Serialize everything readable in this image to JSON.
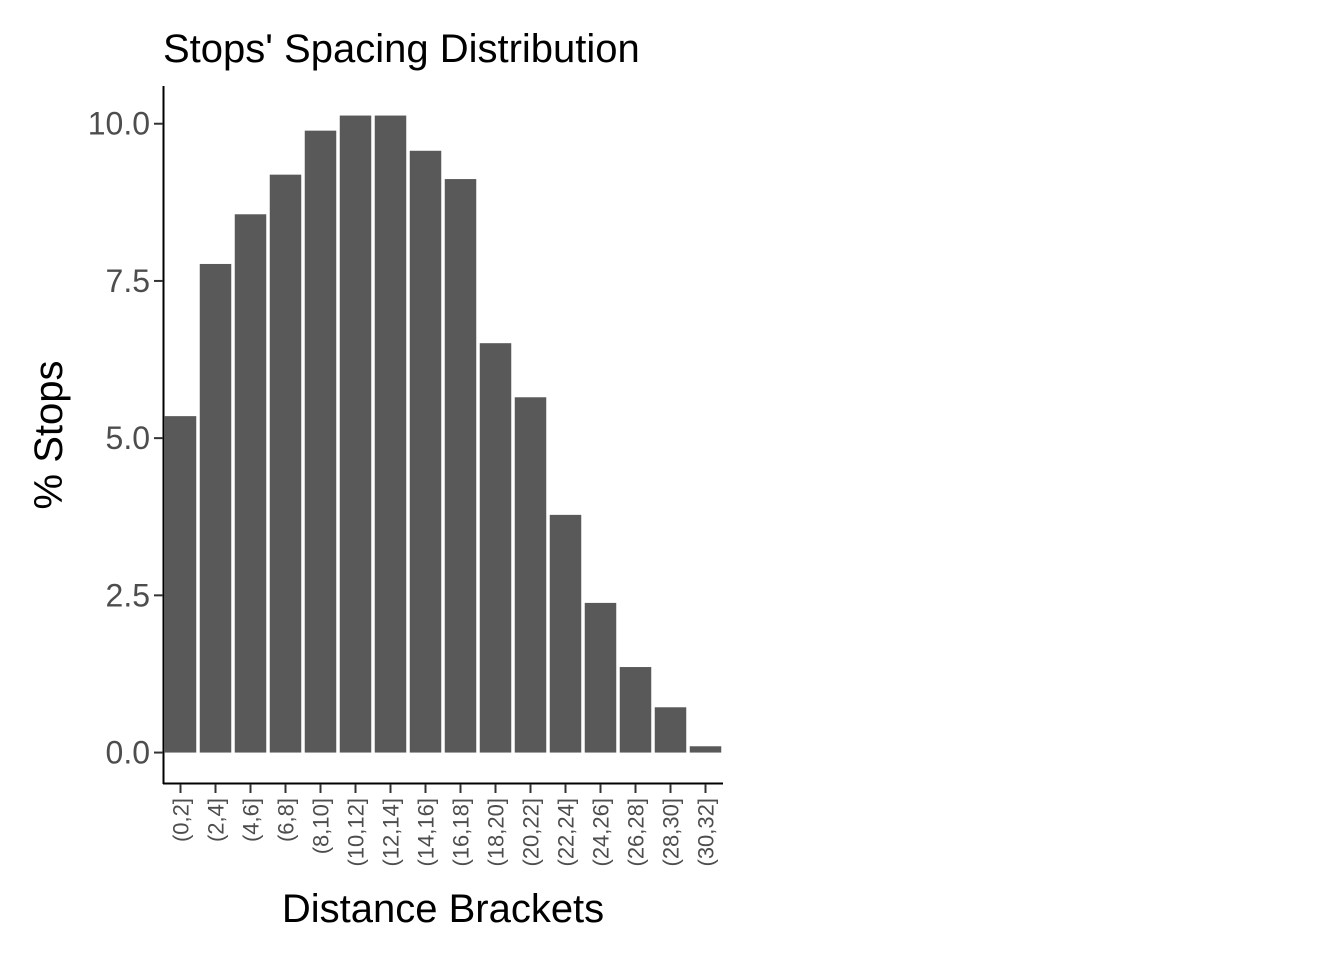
{
  "chart_data": {
    "type": "bar",
    "title": "Stops' Spacing Distribution",
    "xlabel": "Distance Brackets",
    "ylabel": "% Stops",
    "categories": [
      "(0,2]",
      "(2,4]",
      "(4,6]",
      "(6,8]",
      "(8,10]",
      "(10,12]",
      "(12,14]",
      "(14,16]",
      "(16,18]",
      "(18,20]",
      "(20,22]",
      "(22,24]",
      "(24,26]",
      "(26,28]",
      "(28,30]",
      "(30,32]"
    ],
    "values": [
      5.35,
      7.77,
      8.56,
      9.19,
      9.89,
      10.13,
      10.13,
      9.57,
      9.12,
      6.51,
      5.65,
      3.78,
      2.38,
      1.36,
      0.72,
      0.1
    ],
    "yticks": [
      "0.0",
      "2.5",
      "5.0",
      "7.5",
      "10.0"
    ],
    "ylim": [
      -0.5,
      10.6
    ],
    "grid": false,
    "legend": "none",
    "bar_color": "#595959",
    "axis_color": "#000000",
    "tick_label_color": "#4d4d4d"
  }
}
